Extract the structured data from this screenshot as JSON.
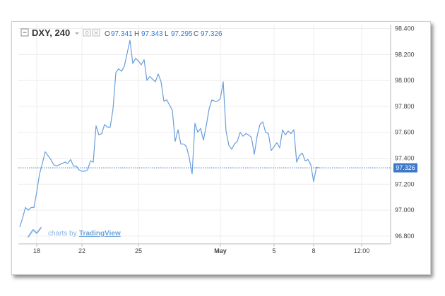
{
  "header": {
    "symbol": "DXY, 240",
    "open_label": "O",
    "open": "97.341",
    "high_label": "H",
    "high": "97.343",
    "low_label": "L",
    "low": "97.295",
    "close_label": "C",
    "close": "97.326"
  },
  "watermark": {
    "prefix": "charts by",
    "brand": "TradingView"
  },
  "colors": {
    "line": "#6a9edb",
    "price_tag": "#3d78c9",
    "grid": "#ececec"
  },
  "chart_data": {
    "type": "line",
    "title": "",
    "xlabel": "",
    "ylabel": "",
    "ylim": [
      96.74,
      98.43
    ],
    "yticks": [
      "98.400",
      "98.200",
      "98.000",
      "97.800",
      "97.600",
      "97.400",
      "97.200",
      "97.000",
      "96.800"
    ],
    "ytick_values": [
      98.4,
      98.2,
      98.0,
      97.8,
      97.6,
      97.4,
      97.2,
      97.0,
      96.8
    ],
    "xticks": [
      {
        "label": "18",
        "index": 6
      },
      {
        "label": "22",
        "index": 22
      },
      {
        "label": "25",
        "index": 42
      },
      {
        "label": "May",
        "index": 71
      },
      {
        "label": "5",
        "index": 90
      },
      {
        "label": "8",
        "index": 104
      },
      {
        "label": "12:00",
        "index": 121
      }
    ],
    "last_price": "97.326",
    "last_value": 97.326,
    "grid": true,
    "values": [
      96.87,
      96.94,
      97.02,
      97.0,
      97.02,
      97.02,
      97.14,
      97.28,
      97.36,
      97.45,
      97.42,
      97.39,
      97.35,
      97.34,
      97.35,
      97.36,
      97.37,
      97.36,
      97.39,
      97.34,
      97.34,
      97.31,
      97.3,
      97.3,
      97.31,
      97.38,
      97.37,
      97.65,
      97.58,
      97.59,
      97.66,
      97.64,
      97.64,
      97.78,
      98.06,
      98.09,
      98.07,
      98.11,
      98.21,
      98.31,
      98.13,
      98.17,
      98.15,
      98.12,
      98.16,
      98.0,
      98.03,
      98.01,
      97.99,
      98.05,
      97.99,
      97.84,
      97.85,
      97.81,
      97.77,
      97.53,
      97.62,
      97.51,
      97.51,
      97.49,
      97.4,
      97.28,
      97.67,
      97.6,
      97.63,
      97.54,
      97.65,
      97.78,
      97.85,
      97.84,
      97.84,
      97.86,
      97.99,
      97.61,
      97.5,
      97.47,
      97.51,
      97.53,
      97.6,
      97.57,
      97.59,
      97.58,
      97.56,
      97.43,
      97.57,
      97.66,
      97.68,
      97.6,
      97.59,
      97.46,
      97.49,
      97.52,
      97.48,
      97.62,
      97.58,
      97.61,
      97.59,
      97.62,
      97.37,
      97.42,
      97.44,
      97.38,
      97.39,
      97.35,
      97.22,
      97.33,
      97.326
    ],
    "x_index_of_values_start": 0
  }
}
